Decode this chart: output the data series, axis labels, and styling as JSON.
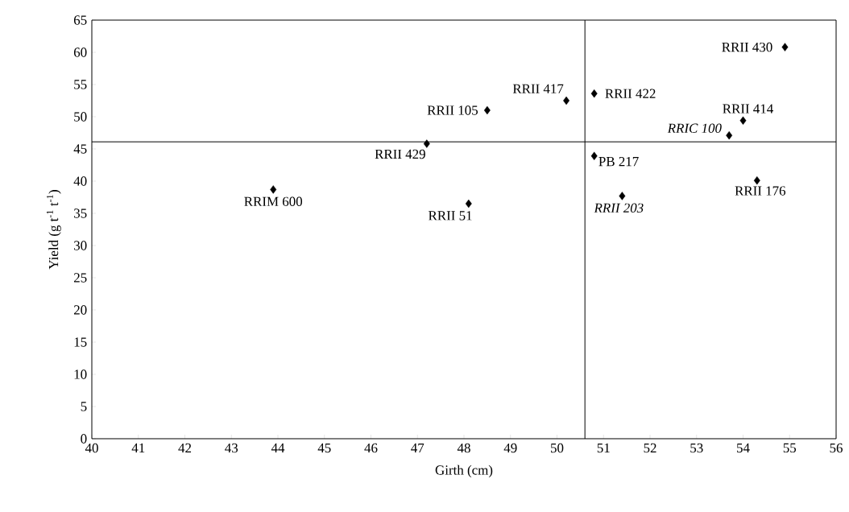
{
  "chart_data": {
    "type": "scatter",
    "xlabel": "Girth (cm)",
    "ylabel": "Yield (g t$^{-1}$ t$^{-1}$)",
    "xlim": [
      40,
      56
    ],
    "xticks": [
      40,
      41,
      42,
      43,
      44,
      45,
      46,
      47,
      48,
      49,
      50,
      51,
      52,
      53,
      54,
      55,
      56
    ],
    "ylim": [
      0,
      65
    ],
    "yticks": [
      0,
      5,
      10,
      15,
      20,
      25,
      30,
      35,
      40,
      45,
      50,
      55,
      60,
      65
    ],
    "marker": "diamond",
    "ref_lines": [
      {
        "axis": "x",
        "value": 50.6,
        "color": "#000000"
      },
      {
        "axis": "y",
        "value": 46.1,
        "color": "#000000"
      }
    ],
    "series": [
      {
        "name": "RRII 430",
        "color": "#000000",
        "x": [
          54.9
        ],
        "values": [
          60.8
        ]
      },
      {
        "name": "RRII 417",
        "color": "#000000",
        "x": [
          50.2
        ],
        "values": [
          52.5
        ]
      },
      {
        "name": "RRII 105",
        "color": "#000000",
        "x": [
          48.5
        ],
        "values": [
          51.0
        ]
      },
      {
        "name": "RRII 422",
        "color": "#000000",
        "x": [
          50.8
        ],
        "values": [
          53.6
        ]
      },
      {
        "name": "RRII 414",
        "color": "#000000",
        "x": [
          54.0
        ],
        "values": [
          49.4
        ]
      },
      {
        "name": "RRIC 100",
        "color": "#000000",
        "x": [
          53.7
        ],
        "values": [
          47.1
        ]
      },
      {
        "name": "RRII 429",
        "color": "#000000",
        "x": [
          47.2
        ],
        "values": [
          45.8
        ]
      },
      {
        "name": "PB 217",
        "color": "#000000",
        "x": [
          50.8
        ],
        "values": [
          43.9
        ]
      },
      {
        "name": "RRII 176",
        "color": "#000000",
        "x": [
          54.3
        ],
        "values": [
          40.1
        ]
      },
      {
        "name": "RRII 203",
        "color": "#000000",
        "x": [
          51.4
        ],
        "values": [
          37.7
        ]
      },
      {
        "name": "RRII 51",
        "color": "#000000",
        "x": [
          48.1
        ],
        "values": [
          36.5
        ]
      },
      {
        "name": "RRIM 600",
        "color": "#000000",
        "x": [
          43.9
        ],
        "values": [
          38.7
        ]
      }
    ]
  }
}
